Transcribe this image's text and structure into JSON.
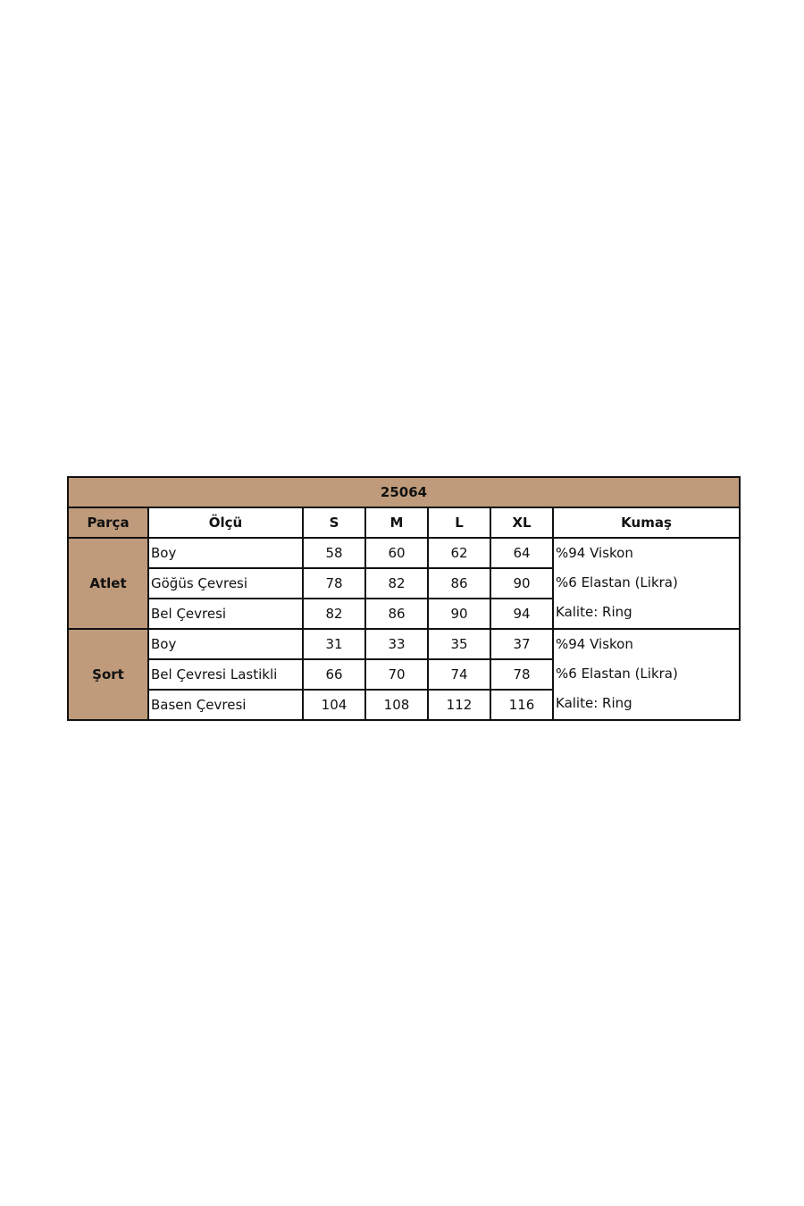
{
  "table": {
    "title": "25064",
    "headers": [
      "Parça",
      "Ölçü",
      "S",
      "M",
      "L",
      "XL",
      "Kumaş"
    ],
    "groups": [
      {
        "part": "Atlet",
        "rows": [
          {
            "measure": "Boy",
            "values": [
              "58",
              "60",
              "62",
              "64"
            ]
          },
          {
            "measure": "Göğüs Çevresi",
            "values": [
              "78",
              "82",
              "86",
              "90"
            ]
          },
          {
            "measure": "Bel Çevresi",
            "values": [
              "82",
              "86",
              "90",
              "94"
            ]
          }
        ],
        "fabric": [
          "%94 Viskon",
          "%6 Elastan (Likra)",
          "Kalite: Ring"
        ]
      },
      {
        "part": "Şort",
        "rows": [
          {
            "measure": "Boy",
            "values": [
              "31",
              "33",
              "35",
              "37"
            ]
          },
          {
            "measure": "Bel Çevresi Lastikli",
            "values": [
              "66",
              "70",
              "74",
              "78"
            ]
          },
          {
            "measure": "Basen Çevresi",
            "values": [
              "104",
              "108",
              "112",
              "116"
            ]
          }
        ],
        "fabric": [
          "%94 Viskon",
          "%6 Elastan (Likra)",
          "Kalite: Ring"
        ]
      }
    ],
    "header_color": "#bf9b7b"
  }
}
